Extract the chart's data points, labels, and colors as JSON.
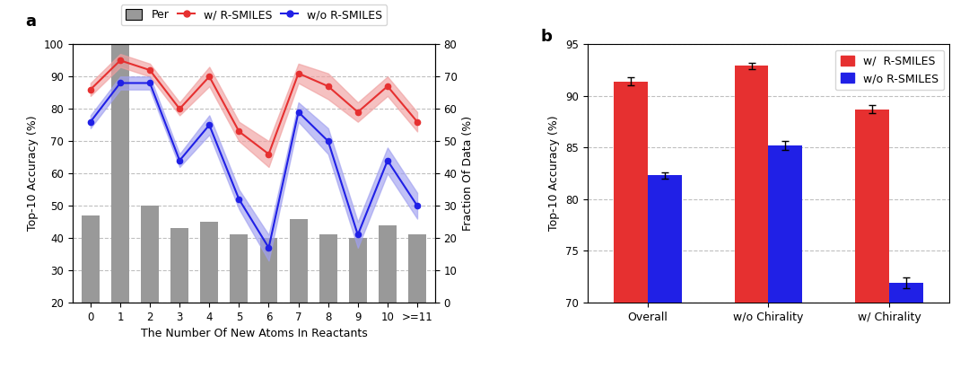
{
  "panel_a": {
    "x_labels": [
      "0",
      "1",
      "2",
      "3",
      "4",
      "5",
      "6",
      "7",
      "8",
      "9",
      "10",
      ">=11"
    ],
    "bar_values": [
      27,
      80,
      30,
      23,
      25,
      21,
      20,
      26,
      21,
      20,
      24,
      21
    ],
    "red_mean": [
      86,
      95,
      92,
      80,
      90,
      73,
      66,
      91,
      87,
      79,
      87,
      76
    ],
    "red_lower": [
      84,
      93,
      90,
      78,
      87,
      70,
      62,
      88,
      83,
      76,
      84,
      73
    ],
    "red_upper": [
      88,
      97,
      94,
      82,
      93,
      76,
      70,
      94,
      91,
      82,
      90,
      79
    ],
    "blue_mean": [
      76,
      88,
      88,
      64,
      75,
      52,
      37,
      79,
      70,
      41,
      64,
      50
    ],
    "blue_lower": [
      74,
      86,
      86,
      62,
      72,
      49,
      33,
      76,
      66,
      37,
      60,
      46
    ],
    "blue_upper": [
      78,
      90,
      90,
      66,
      78,
      55,
      41,
      82,
      74,
      45,
      68,
      54
    ],
    "bar_color": "#999999",
    "red_color": "#e63030",
    "blue_color": "#2020e6",
    "red_fill": "#f0a0a0",
    "blue_fill": "#a0a0f0",
    "ylabel_left": "Top-10 Accuracy (%)",
    "ylabel_right": "Fraction Of Data (%)",
    "xlabel": "The Number Of New Atoms In Reactants",
    "ylim_left": [
      20,
      100
    ],
    "ylim_right": [
      0,
      80
    ],
    "yticks_left": [
      20,
      30,
      40,
      50,
      60,
      70,
      80,
      90,
      100
    ],
    "yticks_right": [
      0,
      10,
      20,
      30,
      40,
      50,
      60,
      70,
      80
    ],
    "legend_labels": [
      "Per",
      "w/ R-SMILES",
      "w/o R-SMILES"
    ]
  },
  "panel_b": {
    "categories": [
      "Overall",
      "w/o Chirality",
      "w/ Chirality"
    ],
    "red_values": [
      91.4,
      92.9,
      88.7
    ],
    "blue_values": [
      82.3,
      85.2,
      71.9
    ],
    "red_err": [
      0.4,
      0.3,
      0.4
    ],
    "blue_err": [
      0.3,
      0.4,
      0.5
    ],
    "red_color": "#e63030",
    "blue_color": "#2020e6",
    "ylabel": "Top-10 Accuracy (%)",
    "ylim": [
      70,
      95
    ],
    "yticks": [
      70,
      75,
      80,
      85,
      90,
      95
    ],
    "legend_labels": [
      "w/  R-SMILES",
      "w/o R-SMILES"
    ]
  }
}
